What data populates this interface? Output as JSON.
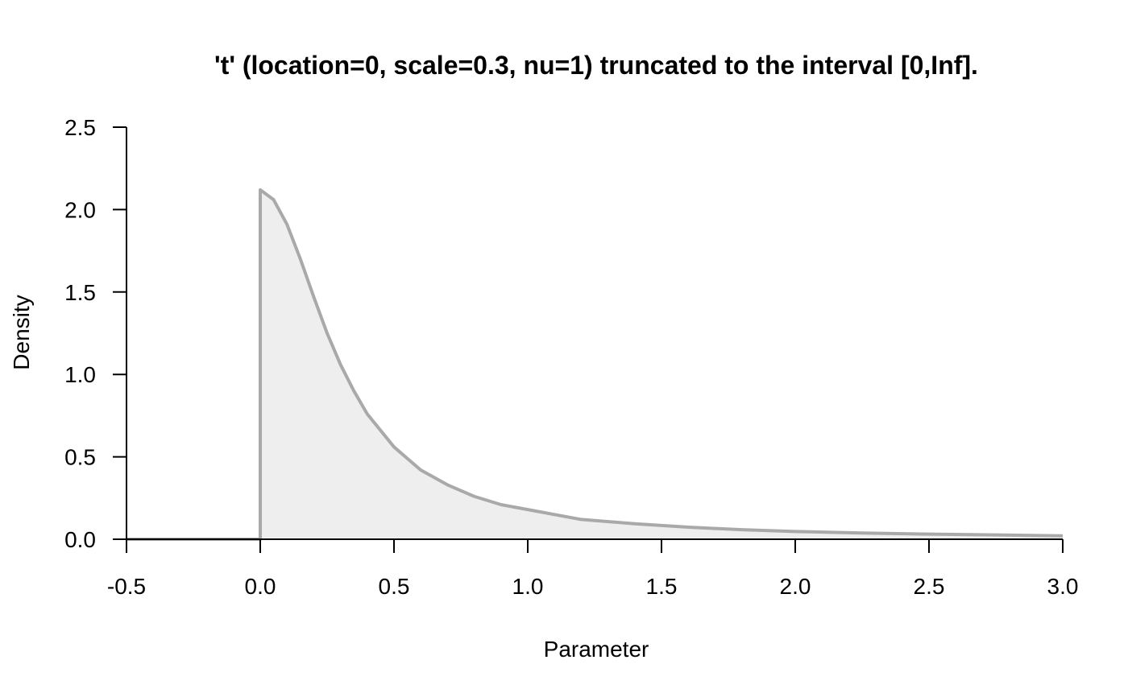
{
  "chart_data": {
    "type": "area",
    "title": "'t' (location=0, scale=0.3, nu=1) truncated to the interval [0,Inf].",
    "xlabel": "Parameter",
    "ylabel": "Density",
    "xlim": [
      -0.5,
      3.0
    ],
    "ylim": [
      0.0,
      2.5
    ],
    "x_ticks": [
      -0.5,
      0.0,
      0.5,
      1.0,
      1.5,
      2.0,
      2.5,
      3.0
    ],
    "x_tick_labels": [
      "-0.5",
      "0.0",
      "0.5",
      "1.0",
      "1.5",
      "2.0",
      "2.5",
      "3.0"
    ],
    "y_ticks": [
      0.0,
      0.5,
      1.0,
      1.5,
      2.0,
      2.5
    ],
    "y_tick_labels": [
      "0.0",
      "0.5",
      "1.0",
      "1.5",
      "2.0",
      "2.5"
    ],
    "grid": false,
    "line_color": "#a9a9a9",
    "fill_color": "#eeeeee",
    "series": [
      {
        "x": [
          -0.5,
          0.0,
          0.0,
          0.05,
          0.1,
          0.15,
          0.2,
          0.25,
          0.3,
          0.35,
          0.4,
          0.5,
          0.6,
          0.7,
          0.8,
          0.9,
          1.0,
          1.2,
          1.4,
          1.6,
          1.8,
          2.0,
          2.25,
          2.5,
          2.75,
          3.0
        ],
        "y": [
          0.0,
          0.0,
          2.12,
          2.06,
          1.91,
          1.7,
          1.47,
          1.25,
          1.06,
          0.9,
          0.76,
          0.56,
          0.42,
          0.33,
          0.26,
          0.21,
          0.18,
          0.12,
          0.094,
          0.073,
          0.058,
          0.047,
          0.038,
          0.031,
          0.026,
          0.021
        ]
      }
    ]
  }
}
